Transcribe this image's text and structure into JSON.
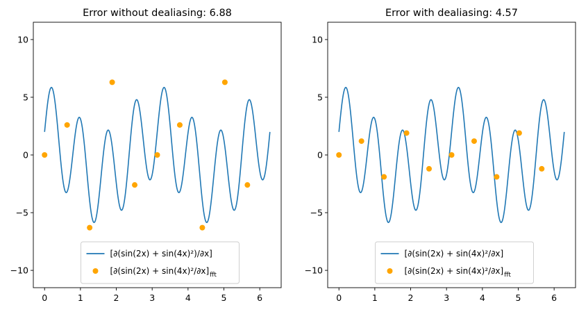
{
  "chart_data": [
    {
      "type": "line",
      "title": "Error without dealiasing: 6.88",
      "xlabel": "",
      "ylabel": "",
      "xlim": [
        -0.314,
        6.597
      ],
      "ylim": [
        -11.5,
        11.5
      ],
      "xticks": [
        0,
        1,
        2,
        3,
        4,
        5,
        6
      ],
      "yticks": [
        -10,
        -5,
        0,
        5,
        10
      ],
      "grid": false,
      "legend_position": "lower-center",
      "series": [
        {
          "name": "[∂(sin(2x) + sin(4x)²)/∂x]",
          "kind": "line",
          "color": "#1f77b4",
          "function": "2cos(2x) + 8 sin(4x) cos(4x)",
          "x_range": [
            0,
            6.283
          ]
        },
        {
          "name": "[∂(sin(2x) + sin(4x)²/∂x]",
          "name_subscript": "fft",
          "kind": "scatter",
          "color": "#ffa500",
          "x": [
            0.0,
            0.628,
            1.257,
            1.885,
            2.513,
            3.142,
            3.77,
            4.398,
            5.027,
            5.655
          ],
          "y": [
            0.0,
            2.6,
            -6.3,
            6.3,
            -2.6,
            0.0,
            2.6,
            -6.3,
            6.3,
            -2.6
          ]
        }
      ]
    },
    {
      "type": "line",
      "title": "Error with dealiasing: 4.57",
      "xlabel": "",
      "ylabel": "",
      "xlim": [
        -0.314,
        6.597
      ],
      "ylim": [
        -11.5,
        11.5
      ],
      "xticks": [
        0,
        1,
        2,
        3,
        4,
        5,
        6
      ],
      "yticks": [
        -10,
        -5,
        0,
        5,
        10
      ],
      "grid": false,
      "legend_position": "lower-center",
      "series": [
        {
          "name": "[∂(sin(2x) + sin(4x)²/∂x]",
          "kind": "line",
          "color": "#1f77b4",
          "function": "2cos(2x) + 8 sin(4x) cos(4x)",
          "x_range": [
            0,
            6.283
          ]
        },
        {
          "name": "[∂(sin(2x) + sin(4x)²/∂x]",
          "name_subscript": "fft",
          "kind": "scatter",
          "color": "#ffa500",
          "x": [
            0.0,
            0.628,
            1.257,
            1.885,
            2.513,
            3.142,
            3.77,
            4.398,
            5.027,
            5.655
          ],
          "y": [
            0.0,
            1.2,
            -1.9,
            1.9,
            -1.2,
            0.0,
            1.2,
            -1.9,
            1.9,
            -1.2
          ]
        }
      ]
    }
  ]
}
